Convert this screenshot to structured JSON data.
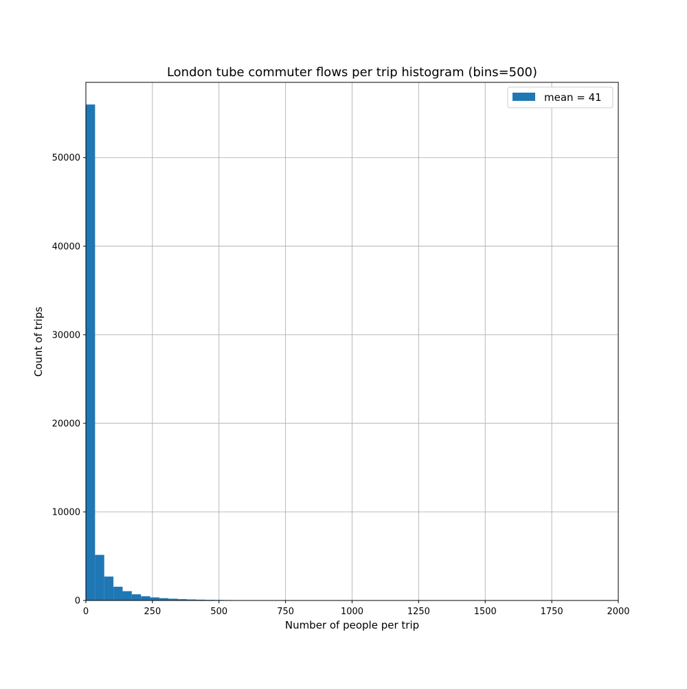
{
  "chart_data": {
    "type": "bar",
    "title": "London tube commuter flows per trip histogram (bins=500)",
    "xlabel": "Number of people per trip",
    "ylabel": "Count of trips",
    "xlim": [
      0,
      2000
    ],
    "ylim": [
      0,
      58500
    ],
    "grid": true,
    "legend": {
      "position": "top-right",
      "label": "mean = 41"
    },
    "bar_color": "#1f77b4",
    "xticks": [
      0,
      250,
      500,
      750,
      1000,
      1250,
      1500,
      1750,
      2000
    ],
    "yticks": [
      0,
      10000,
      20000,
      30000,
      40000,
      50000
    ],
    "bin_width": 34.5,
    "bins": [
      {
        "x0": 0.0,
        "value": 56000
      },
      {
        "x0": 34.5,
        "value": 5150
      },
      {
        "x0": 69.0,
        "value": 2700
      },
      {
        "x0": 103.5,
        "value": 1550
      },
      {
        "x0": 138.0,
        "value": 1050
      },
      {
        "x0": 172.5,
        "value": 700
      },
      {
        "x0": 207.0,
        "value": 480
      },
      {
        "x0": 241.5,
        "value": 350
      },
      {
        "x0": 276.0,
        "value": 260
      },
      {
        "x0": 310.5,
        "value": 200
      },
      {
        "x0": 345.0,
        "value": 150
      },
      {
        "x0": 379.5,
        "value": 115
      },
      {
        "x0": 414.0,
        "value": 90
      },
      {
        "x0": 448.5,
        "value": 70
      },
      {
        "x0": 483.0,
        "value": 55
      },
      {
        "x0": 517.5,
        "value": 45
      },
      {
        "x0": 552.0,
        "value": 35
      },
      {
        "x0": 586.5,
        "value": 28
      },
      {
        "x0": 621.0,
        "value": 22
      },
      {
        "x0": 655.5,
        "value": 18
      },
      {
        "x0": 690.0,
        "value": 14
      },
      {
        "x0": 724.5,
        "value": 11
      },
      {
        "x0": 759.0,
        "value": 9
      },
      {
        "x0": 793.5,
        "value": 7
      },
      {
        "x0": 828.0,
        "value": 6
      },
      {
        "x0": 862.5,
        "value": 5
      },
      {
        "x0": 897.0,
        "value": 4
      },
      {
        "x0": 931.5,
        "value": 3
      },
      {
        "x0": 966.0,
        "value": 3
      },
      {
        "x0": 1000.5,
        "value": 2
      },
      {
        "x0": 1035.0,
        "value": 2
      },
      {
        "x0": 1069.5,
        "value": 2
      },
      {
        "x0": 1104.0,
        "value": 1
      },
      {
        "x0": 1138.5,
        "value": 1
      },
      {
        "x0": 1173.0,
        "value": 1
      },
      {
        "x0": 1207.5,
        "value": 1
      },
      {
        "x0": 1242.0,
        "value": 1
      },
      {
        "x0": 1276.5,
        "value": 1
      }
    ]
  }
}
